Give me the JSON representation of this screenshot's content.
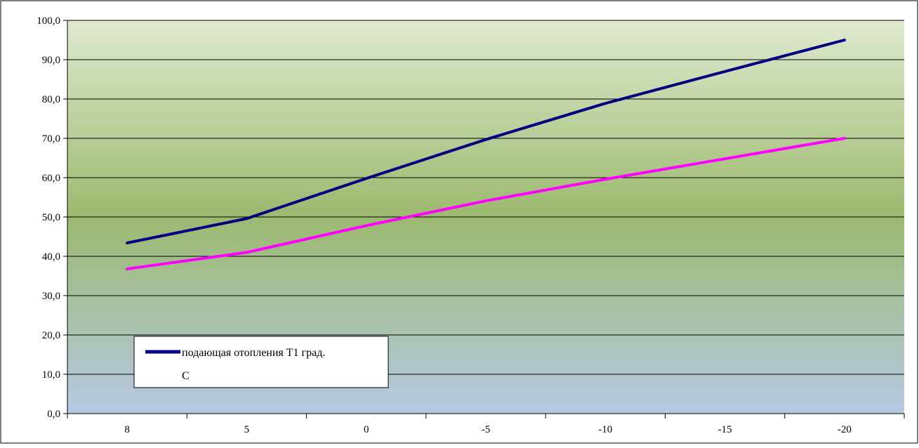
{
  "chart_data": {
    "type": "line",
    "categories": [
      "8",
      "5",
      "0",
      "-5",
      "-10",
      "-15",
      "-20"
    ],
    "y_ticks": [
      "0,0",
      "10,0",
      "20,0",
      "30,0",
      "40,0",
      "50,0",
      "60,0",
      "70,0",
      "80,0",
      "90,0",
      "100,0"
    ],
    "ylim": [
      0,
      100
    ],
    "grid": "horizontal",
    "legend": {
      "placement": "bottom-left",
      "lines": [
        "подающая отопления Т1 град.",
        "С"
      ]
    },
    "series": [
      {
        "name": "подающая отопления Т1 град. С",
        "color": "#000080",
        "values": [
          43.4,
          49.6,
          59.8,
          69.7,
          78.9,
          87.0,
          95.0
        ]
      },
      {
        "color": "#ff00ff",
        "values": [
          36.8,
          41.0,
          47.8,
          54.1,
          59.6,
          64.8,
          70.0
        ]
      }
    ],
    "background_gradient": [
      "#dfe9cf",
      "#9cb96f",
      "#b6c9e3"
    ]
  }
}
